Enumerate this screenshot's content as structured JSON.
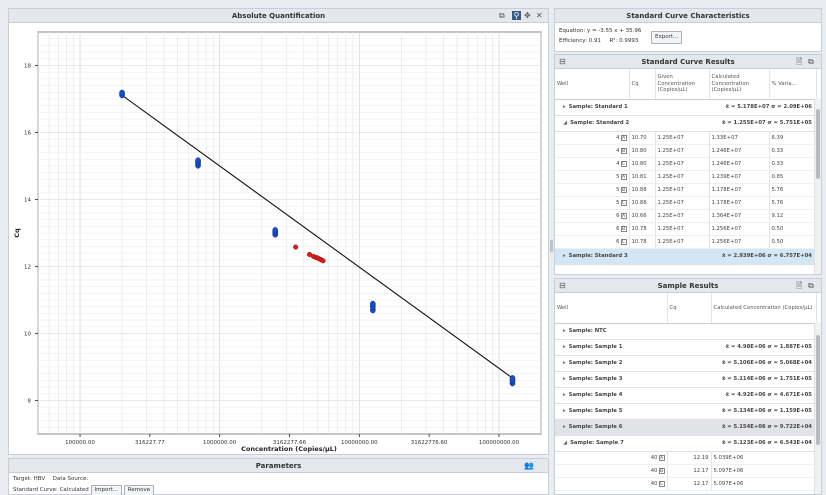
{
  "chart_panel": {
    "title": "Absolute Quantification",
    "toolbar_icons": [
      "copy-icon",
      "zoom-icon",
      "pan-icon",
      "reset-icon"
    ]
  },
  "chart_data": {
    "type": "scatter",
    "title": "",
    "xlabel": "Concentration (Copies/µL)",
    "ylabel": "Cq",
    "x_scale": "log",
    "xlim": [
      50000,
      200000000
    ],
    "ylim": [
      7,
      19
    ],
    "x_ticks": [
      "100000.00",
      "316227.77",
      "1000000.00",
      "3162277.66",
      "10000000.00",
      "31622776.60",
      "100000000.00"
    ],
    "y_ticks": [
      "8",
      "10",
      "12",
      "14",
      "16",
      "18"
    ],
    "grid": true,
    "regression_line": {
      "x": [
        200000,
        125000000
      ],
      "y": [
        17.11,
        8.67
      ]
    },
    "series": [
      {
        "color": "#1a4fc4",
        "points": [
          {
            "x": 200000,
            "y": 17.12
          },
          {
            "x": 200000,
            "y": 17.18
          },
          {
            "x": 700000,
            "y": 15.02
          },
          {
            "x": 700000,
            "y": 15.1
          },
          {
            "x": 700000,
            "y": 15.16
          },
          {
            "x": 2500000,
            "y": 12.96
          },
          {
            "x": 2500000,
            "y": 13.02
          },
          {
            "x": 2500000,
            "y": 13.08
          },
          {
            "x": 12500000,
            "y": 10.7
          },
          {
            "x": 12500000,
            "y": 10.8
          },
          {
            "x": 12500000,
            "y": 10.88
          },
          {
            "x": 125000000,
            "y": 8.52
          },
          {
            "x": 125000000,
            "y": 8.6
          },
          {
            "x": 125000000,
            "y": 8.66
          }
        ]
      },
      {
        "color": "#d42020",
        "points": [
          {
            "x": 3500000,
            "y": 12.58
          },
          {
            "x": 4400000,
            "y": 12.36
          },
          {
            "x": 4700000,
            "y": 12.3
          },
          {
            "x": 4900000,
            "y": 12.27
          },
          {
            "x": 5050000,
            "y": 12.25
          },
          {
            "x": 5200000,
            "y": 12.22
          },
          {
            "x": 5350000,
            "y": 12.2
          },
          {
            "x": 5500000,
            "y": 12.17
          }
        ]
      }
    ]
  },
  "parameters_panel": {
    "title": "Parameters",
    "target_label": "Target: HBV",
    "data_source_label": "Data Source:",
    "standard_curve_label": "Standard Curve: Calculated",
    "import_label": "Import...",
    "remove_label": "Remove"
  },
  "characteristics_panel": {
    "title": "Standard Curve Characteristics",
    "equation": "Equation: y = -3.55 x + 35.96",
    "efficiency": "Efficiency: 0.91",
    "r2": "R²: 0.9993",
    "export_label": "Export..."
  },
  "std_results": {
    "title": "Standard Curve Results",
    "headers": {
      "well": "Well",
      "cq": "Cq",
      "given": "Given Concentration (Copies/µL)",
      "calculated": "Calculated Concentration (Copies/µL)",
      "variation": "% Varia..."
    },
    "groups": [
      {
        "label": "Sample: Standard 1",
        "stats": "x̄ = 5.178E+07 σ = 2.09E+06",
        "expanded": false,
        "selected": false
      },
      {
        "label": "Sample: Standard 2",
        "stats": "x̄ = 1.255E+07 σ = 5.751E+05",
        "expanded": true,
        "selected": false
      },
      {
        "label": "Sample: Standard 3",
        "stats": "x̄ = 2.939E+06 σ = 6.757E+04",
        "expanded": false,
        "selected": true
      }
    ],
    "rows": [
      {
        "num": "4",
        "letter": "A",
        "cq": "10.70",
        "given": "1.25E+07",
        "calc": "1.33E+07",
        "var": "6.39"
      },
      {
        "num": "4",
        "letter": "B",
        "cq": "10.80",
        "given": "1.25E+07",
        "calc": "1.246E+07",
        "var": "0.33"
      },
      {
        "num": "4",
        "letter": "C",
        "cq": "10.80",
        "given": "1.25E+07",
        "calc": "1.246E+07",
        "var": "0.33"
      },
      {
        "num": "5",
        "letter": "A",
        "cq": "10.81",
        "given": "1.25E+07",
        "calc": "1.239E+07",
        "var": "0.85"
      },
      {
        "num": "5",
        "letter": "B",
        "cq": "10.88",
        "given": "1.25E+07",
        "calc": "1.178E+07",
        "var": "5.76"
      },
      {
        "num": "5",
        "letter": "C",
        "cq": "10.88",
        "given": "1.25E+07",
        "calc": "1.178E+07",
        "var": "5.76"
      },
      {
        "num": "6",
        "letter": "A",
        "cq": "10.66",
        "given": "1.25E+07",
        "calc": "1.364E+07",
        "var": "9.12"
      },
      {
        "num": "6",
        "letter": "B",
        "cq": "10.78",
        "given": "1.25E+07",
        "calc": "1.256E+07",
        "var": "0.50"
      },
      {
        "num": "6",
        "letter": "C",
        "cq": "10.78",
        "given": "1.25E+07",
        "calc": "1.256E+07",
        "var": "0.50"
      }
    ]
  },
  "sample_results": {
    "title": "Sample Results",
    "headers": {
      "well": "Well",
      "cq": "Cq",
      "calculated": "Calculated Concentration (Copies/µL)"
    },
    "groups": [
      {
        "label": "Sample: NTC",
        "stats": "",
        "expanded": false,
        "style": ""
      },
      {
        "label": "Sample: Sample 1",
        "stats": "x̄ = 4.98E+06 σ = 1.887E+05",
        "expanded": false,
        "style": ""
      },
      {
        "label": "Sample: Sample 2",
        "stats": "x̄ = 5.106E+06 σ = 5.068E+04",
        "expanded": false,
        "style": ""
      },
      {
        "label": "Sample: Sample 3",
        "stats": "x̄ = 5.114E+06 σ = 1.751E+05",
        "expanded": false,
        "style": ""
      },
      {
        "label": "Sample: Sample 4",
        "stats": "x̄ = 4.92E+06 σ = 4.671E+05",
        "expanded": false,
        "style": ""
      },
      {
        "label": "Sample: Sample 5",
        "stats": "x̄ = 5.134E+06 σ = 1.159E+05",
        "expanded": false,
        "style": ""
      },
      {
        "label": "Sample: Sample 6",
        "stats": "x̄ = 5.154E+06 σ = 9.722E+04",
        "expanded": false,
        "style": "gray"
      },
      {
        "label": "Sample: Sample 7",
        "stats": "x̄ = 5.123E+06 σ = 6.543E+04",
        "expanded": true,
        "style": ""
      }
    ],
    "rows": [
      {
        "num": "40",
        "letter": "A",
        "cq": "12.19",
        "calc": "5.039E+06"
      },
      {
        "num": "40",
        "letter": "B",
        "cq": "12.17",
        "calc": "5.097E+06"
      },
      {
        "num": "40",
        "letter": "C",
        "cq": "12.17",
        "calc": "5.097E+06"
      }
    ]
  }
}
